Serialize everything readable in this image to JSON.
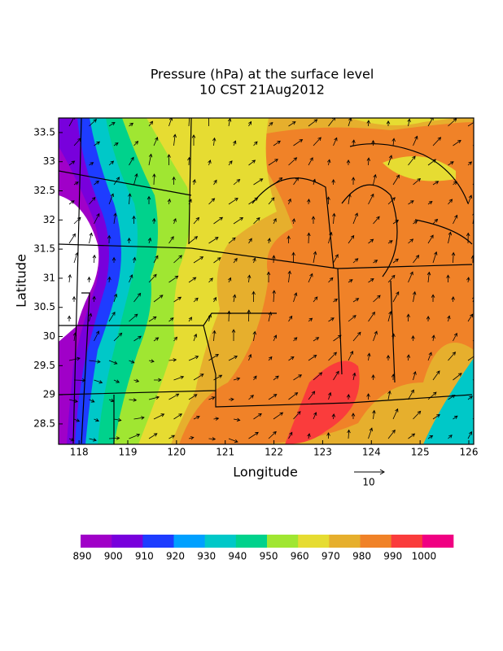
{
  "title": [
    "Pressure (hPa) at the surface level",
    "10 CST 21Aug2012"
  ],
  "xlabel": "Longitude",
  "ylabel": "Latitude",
  "xlim": [
    117.58,
    126.1
  ],
  "ylim": [
    28.15,
    33.75
  ],
  "xticks": [
    118,
    119,
    120,
    121,
    122,
    123,
    124,
    125,
    126
  ],
  "yticks": [
    28.5,
    29,
    29.5,
    30,
    30.5,
    31,
    31.5,
    32,
    32.5,
    33,
    33.5
  ],
  "colorbar": {
    "colors": [
      "#a000c8",
      "#7800dc",
      "#1e3cff",
      "#00a0ff",
      "#00c8c8",
      "#00d28c",
      "#a0e632",
      "#e6dc32",
      "#e6af2d",
      "#f08228",
      "#fa3c3c",
      "#f00082"
    ],
    "labels": [
      890,
      900,
      910,
      920,
      930,
      940,
      950,
      960,
      970,
      980,
      990,
      1000
    ]
  },
  "reference_vector": {
    "label": "10"
  }
}
